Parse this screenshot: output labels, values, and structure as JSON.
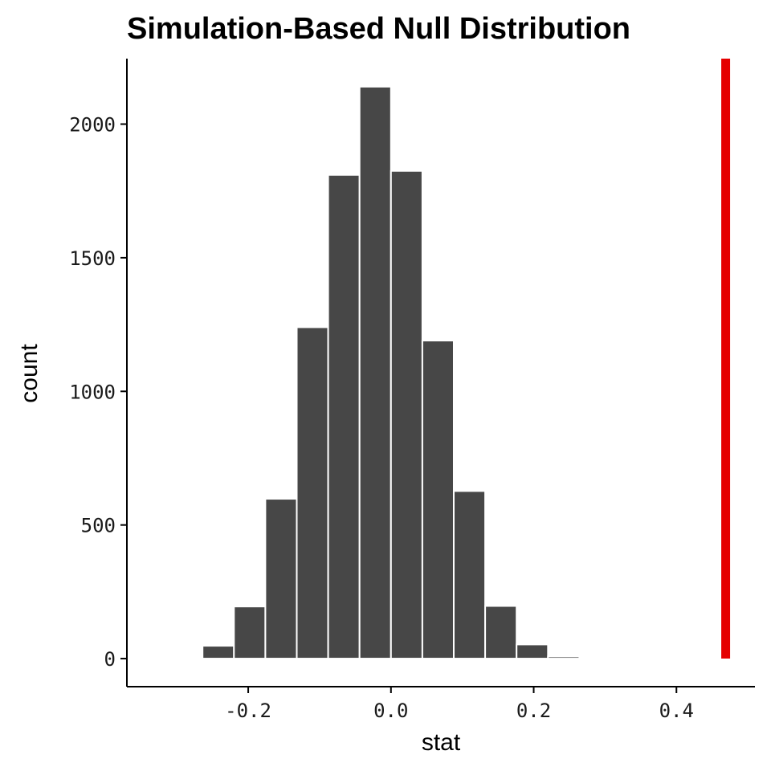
{
  "chart_data": {
    "type": "bar",
    "title": "Simulation-Based Null Distribution",
    "xlabel": "stat",
    "ylabel": "count",
    "xlim": [
      -0.37,
      0.51
    ],
    "ylim": [
      -105,
      2245
    ],
    "x_ticks": [
      -0.2,
      0.0,
      0.2,
      0.4
    ],
    "x_tick_labels": [
      "-0.2",
      "0.0",
      "0.2",
      "0.4"
    ],
    "y_ticks": [
      0,
      500,
      1000,
      1500,
      2000
    ],
    "y_tick_labels": [
      "0",
      "500",
      "1000",
      "1500",
      "2000"
    ],
    "bin_width": 0.044,
    "bins": [
      {
        "center": -0.33,
        "count": 1
      },
      {
        "center": -0.286,
        "count": 3
      },
      {
        "center": -0.242,
        "count": 48
      },
      {
        "center": -0.198,
        "count": 195
      },
      {
        "center": -0.154,
        "count": 598
      },
      {
        "center": -0.11,
        "count": 1240
      },
      {
        "center": -0.066,
        "count": 1810
      },
      {
        "center": -0.022,
        "count": 2140
      },
      {
        "center": 0.022,
        "count": 1825
      },
      {
        "center": 0.066,
        "count": 1190
      },
      {
        "center": 0.11,
        "count": 627
      },
      {
        "center": 0.154,
        "count": 197
      },
      {
        "center": 0.198,
        "count": 53
      },
      {
        "center": 0.242,
        "count": 8
      },
      {
        "center": 0.286,
        "count": 0
      },
      {
        "center": 0.33,
        "count": 0
      }
    ],
    "observed_stat": 0.469,
    "bar_color": "#474747",
    "bar_outline": "#ffffff",
    "observed_line_color": "#e50000",
    "grid": false,
    "legend": "none"
  }
}
